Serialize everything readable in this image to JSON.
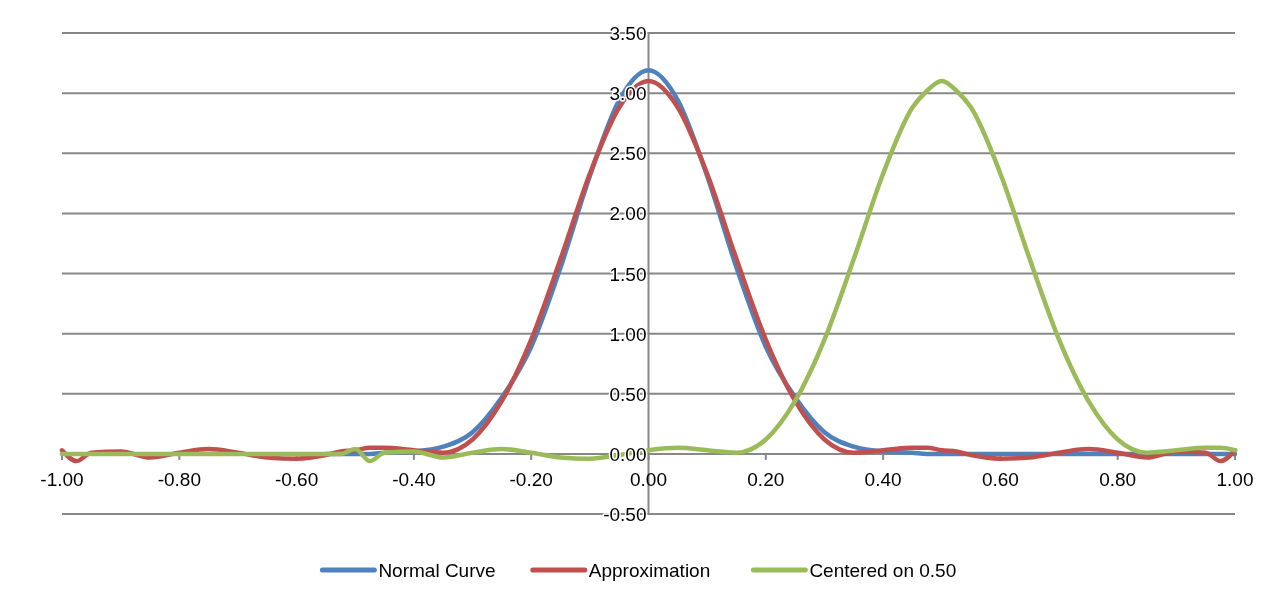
{
  "chart_data": {
    "type": "line",
    "x": [
      -1,
      -0.975,
      -0.95,
      -0.9,
      -0.85,
      -0.8,
      -0.75,
      -0.7,
      -0.65,
      -0.6,
      -0.55,
      -0.525,
      -0.5,
      -0.475,
      -0.45,
      -0.4,
      -0.35,
      -0.3,
      -0.25,
      -0.2,
      -0.15,
      -0.1,
      -0.05,
      0,
      0.05,
      0.1,
      0.15,
      0.2,
      0.25,
      0.3,
      0.35,
      0.4,
      0.45,
      0.475,
      0.5,
      0.525,
      0.55,
      0.6,
      0.65,
      0.7,
      0.75,
      0.8,
      0.85,
      0.9,
      0.95,
      0.975,
      1
    ],
    "series": [
      {
        "name": "Normal Curve",
        "color": "#4f81bd",
        "values": [
          null,
          null,
          null,
          null,
          null,
          null,
          null,
          null,
          null,
          null,
          0,
          0,
          0,
          0,
          0.01,
          0.02,
          0.06,
          0.18,
          0.47,
          0.89,
          1.55,
          2.31,
          2.94,
          3.19,
          2.94,
          2.31,
          1.55,
          0.89,
          0.47,
          0.18,
          0.06,
          0.02,
          0.01,
          0,
          0,
          0,
          0,
          0,
          0,
          0,
          0,
          0,
          0,
          0,
          0,
          0,
          0
        ]
      },
      {
        "name": "Approximation",
        "color": "#c0504d",
        "values": [
          0.03,
          -0.06,
          0.01,
          0.02,
          -0.03,
          0.01,
          0.04,
          0.01,
          -0.03,
          -0.04,
          -0.01,
          0.02,
          0.03,
          0.05,
          0.05,
          0.03,
          0.01,
          0.12,
          0.44,
          0.95,
          1.62,
          2.33,
          2.88,
          3.1,
          2.88,
          2.33,
          1.62,
          0.95,
          0.44,
          0.12,
          0.01,
          0.03,
          0.05,
          0.05,
          0.03,
          0.02,
          -0.01,
          -0.04,
          -0.03,
          0.01,
          0.04,
          0.01,
          -0.03,
          0.02,
          0.01,
          -0.06,
          0.03
        ]
      },
      {
        "name": "Centered on 0.50",
        "color": "#9bbb59",
        "values": [
          0,
          0,
          0,
          0,
          0,
          0,
          0,
          0,
          0,
          0,
          0,
          0,
          0.04,
          -0.06,
          0.01,
          0.02,
          -0.03,
          0.01,
          0.04,
          0.01,
          -0.03,
          -0.04,
          -0.01,
          0.03,
          0.05,
          0.03,
          0.01,
          0.12,
          0.44,
          0.95,
          1.62,
          2.33,
          2.88,
          3.02,
          3.1,
          3.02,
          2.88,
          2.33,
          1.62,
          0.95,
          0.44,
          0.12,
          0.01,
          0.03,
          0.05,
          0.05,
          0.03
        ]
      }
    ],
    "xlim": [
      -1,
      1
    ],
    "xticks": [
      {
        "value": -1,
        "label": "-1.00"
      },
      {
        "value": -0.8,
        "label": "-0.80"
      },
      {
        "value": -0.6,
        "label": "-0.60"
      },
      {
        "value": -0.4,
        "label": "-0.40"
      },
      {
        "value": -0.2,
        "label": "-0.20"
      },
      {
        "value": 0,
        "label": "0.00"
      },
      {
        "value": 0.2,
        "label": "0.20"
      },
      {
        "value": 0.4,
        "label": "0.40"
      },
      {
        "value": 0.6,
        "label": "0.60"
      },
      {
        "value": 0.8,
        "label": "0.80"
      },
      {
        "value": 1,
        "label": "1.00"
      }
    ],
    "ylim": [
      -0.5,
      3.5
    ],
    "yticks": [
      {
        "value": -0.5,
        "label": "-0.50"
      },
      {
        "value": 0,
        "label": "0.00"
      },
      {
        "value": 0.5,
        "label": "0.50"
      },
      {
        "value": 1,
        "label": "1.00"
      },
      {
        "value": 1.5,
        "label": "1.50"
      },
      {
        "value": 2,
        "label": "2.00"
      },
      {
        "value": 2.5,
        "label": "2.50"
      },
      {
        "value": 3,
        "label": "3.00"
      },
      {
        "value": 3.5,
        "label": "3.50"
      }
    ],
    "grid": "y",
    "legend": "bottom",
    "marker": "none",
    "line_style": "solid"
  }
}
